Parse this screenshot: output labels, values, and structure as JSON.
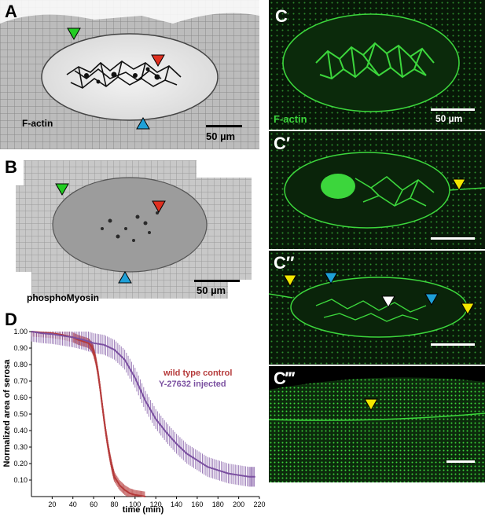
{
  "panels": {
    "A": {
      "label": "A",
      "stain": "F-actin",
      "scale": "50 µm"
    },
    "B": {
      "label": "B",
      "stain": "phosphoMyosin",
      "scale": "50 µm"
    },
    "C": {
      "label": "C",
      "stain": "F-actin",
      "scale": "50 µm"
    },
    "C1": {
      "label": "C′"
    },
    "C2": {
      "label": "C″"
    },
    "C3": {
      "label": "C‴"
    },
    "D": {
      "label": "D"
    }
  },
  "colors": {
    "green_arrow": "#22cc22",
    "red_arrow": "#e03020",
    "blue_arrow": "#1ea0d8",
    "yellow_arrow": "#f2e600",
    "white_arrow": "#ffffff",
    "wild_type": "#b53a3a",
    "injected": "#7a4fa0",
    "fluor_green": "#3cd63c"
  },
  "chart_data": {
    "type": "line",
    "xlabel": "time (min)",
    "ylabel": "Normalized area of serosa",
    "xlim": [
      0,
      220
    ],
    "ylim": [
      0,
      1.0
    ],
    "xticks": [
      20,
      40,
      60,
      80,
      100,
      120,
      140,
      160,
      180,
      200,
      220
    ],
    "yticks": [
      0.1,
      0.2,
      0.3,
      0.4,
      0.5,
      0.6,
      0.7,
      0.8,
      0.9,
      1.0
    ],
    "ytick_labels": [
      "0.10",
      "0.20",
      "0.30",
      "0.40",
      "0.50",
      "0.60",
      "0.70",
      "0.80",
      "0.90",
      "1.00"
    ],
    "legend_placement": "middle-right",
    "series": [
      {
        "name": "wild type control",
        "x": [
          0,
          10,
          20,
          30,
          40,
          45,
          50,
          55,
          58,
          60,
          62,
          64,
          66,
          68,
          70,
          72,
          74,
          76,
          78,
          80,
          85,
          90,
          95,
          100,
          105,
          110
        ],
        "y": [
          1.0,
          0.995,
          0.99,
          0.98,
          0.965,
          0.95,
          0.94,
          0.93,
          0.91,
          0.88,
          0.83,
          0.76,
          0.67,
          0.57,
          0.47,
          0.38,
          0.3,
          0.23,
          0.17,
          0.12,
          0.07,
          0.04,
          0.02,
          0.01,
          0.005,
          0.0
        ],
        "err": 0.03
      },
      {
        "name": "Y-27632 injected",
        "x": [
          0,
          10,
          20,
          30,
          40,
          50,
          60,
          70,
          80,
          90,
          100,
          110,
          120,
          130,
          140,
          150,
          160,
          170,
          180,
          190,
          200,
          210,
          216
        ],
        "y": [
          1.0,
          0.99,
          0.985,
          0.975,
          0.965,
          0.95,
          0.93,
          0.92,
          0.89,
          0.83,
          0.72,
          0.58,
          0.47,
          0.39,
          0.32,
          0.26,
          0.22,
          0.18,
          0.16,
          0.14,
          0.13,
          0.12,
          0.12
        ],
        "err": 0.06
      }
    ]
  }
}
